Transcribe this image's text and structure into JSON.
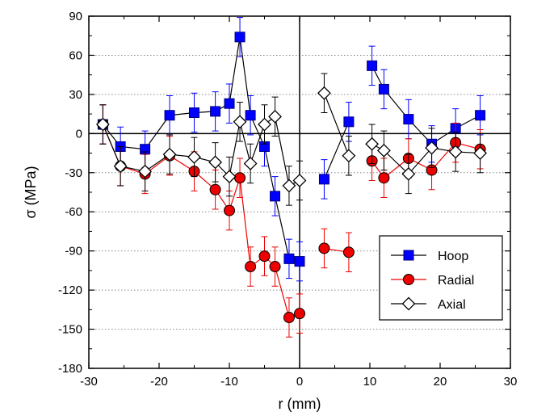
{
  "chart_data": {
    "type": "scatter",
    "xlabel": "r (mm)",
    "ylabel": "σ (MPa)",
    "xlim": [
      -30,
      30
    ],
    "ylim": [
      -180,
      90
    ],
    "x_ticks": [
      -30,
      -20,
      -10,
      0,
      10,
      20,
      30
    ],
    "y_ticks": [
      -180,
      -150,
      -120,
      -90,
      -60,
      -30,
      0,
      30,
      60,
      90
    ],
    "grid": "horizontal dotted",
    "legend_position": "bottom-right",
    "series": [
      {
        "name": "Hoop",
        "marker": "square",
        "color": "#0000ff",
        "line_color": "#000000",
        "segments": [
          [
            {
              "x": -28.0,
              "y": 7,
              "err": 15
            },
            {
              "x": -25.5,
              "y": -10,
              "err": 15
            },
            {
              "x": -22.0,
              "y": -12,
              "err": 14
            },
            {
              "x": -18.5,
              "y": 14,
              "err": 15
            },
            {
              "x": -15.0,
              "y": 16,
              "err": 15
            },
            {
              "x": -12.0,
              "y": 17,
              "err": 15
            },
            {
              "x": -10.0,
              "y": 23,
              "err": 15
            },
            {
              "x": -8.5,
              "y": 74,
              "err": 15
            },
            {
              "x": -7.0,
              "y": 14,
              "err": 15
            },
            {
              "x": -5.0,
              "y": -10,
              "err": 15
            },
            {
              "x": -3.5,
              "y": -48,
              "err": 15
            },
            {
              "x": -1.5,
              "y": -96,
              "err": 15
            },
            {
              "x": 0.0,
              "y": -98,
              "err": 15
            }
          ],
          [
            {
              "x": 3.5,
              "y": -35,
              "err": 15
            },
            {
              "x": 7.0,
              "y": 9,
              "err": 15
            }
          ],
          [
            {
              "x": 10.3,
              "y": 52,
              "err": 15
            },
            {
              "x": 12.0,
              "y": 34,
              "err": 15
            },
            {
              "x": 15.5,
              "y": 11,
              "err": 15
            },
            {
              "x": 18.8,
              "y": -8,
              "err": 14
            },
            {
              "x": 22.2,
              "y": 4,
              "err": 15
            },
            {
              "x": 25.7,
              "y": 14,
              "err": 15
            }
          ]
        ]
      },
      {
        "name": "Radial",
        "marker": "circle",
        "color": "#ee0000",
        "line_color": "#ee0000",
        "segments": [
          [
            {
              "x": -28.0,
              "y": 7,
              "err": 15
            },
            {
              "x": -25.5,
              "y": -25,
              "err": 15
            },
            {
              "x": -22.0,
              "y": -31,
              "err": 15
            },
            {
              "x": -18.5,
              "y": -17,
              "err": 15
            },
            {
              "x": -15.0,
              "y": -29,
              "err": 15
            },
            {
              "x": -12.0,
              "y": -43,
              "err": 15
            },
            {
              "x": -10.0,
              "y": -59,
              "err": 15
            },
            {
              "x": -8.5,
              "y": -34,
              "err": 15
            },
            {
              "x": -7.0,
              "y": -102,
              "err": 15
            },
            {
              "x": -5.0,
              "y": -94,
              "err": 15
            },
            {
              "x": -3.5,
              "y": -102,
              "err": 15
            },
            {
              "x": -1.5,
              "y": -141,
              "err": 15
            },
            {
              "x": 0.0,
              "y": -138,
              "err": 15
            }
          ],
          [
            {
              "x": 3.5,
              "y": -88,
              "err": 15
            },
            {
              "x": 7.0,
              "y": -91,
              "err": 15
            }
          ],
          [
            {
              "x": 10.3,
              "y": -21,
              "err": 15
            },
            {
              "x": 12.0,
              "y": -34,
              "err": 15
            },
            {
              "x": 15.5,
              "y": -19,
              "err": 15
            },
            {
              "x": 18.8,
              "y": -28,
              "err": 15
            },
            {
              "x": 22.2,
              "y": -7,
              "err": 15
            },
            {
              "x": 25.7,
              "y": -12,
              "err": 15
            }
          ]
        ]
      },
      {
        "name": "Axial",
        "marker": "diamond",
        "color": "#ffffff",
        "line_color": "#000000",
        "segments": [
          [
            {
              "x": -28.0,
              "y": 7,
              "err": 15
            },
            {
              "x": -25.5,
              "y": -25,
              "err": 15
            },
            {
              "x": -22.0,
              "y": -29,
              "err": 15
            },
            {
              "x": -18.5,
              "y": -16,
              "err": 15
            },
            {
              "x": -15.0,
              "y": -18,
              "err": 15
            },
            {
              "x": -12.0,
              "y": -22,
              "err": 15
            },
            {
              "x": -10.0,
              "y": -33,
              "err": 15
            },
            {
              "x": -8.5,
              "y": 9,
              "err": 15
            },
            {
              "x": -7.0,
              "y": -23,
              "err": 15
            },
            {
              "x": -5.0,
              "y": 7,
              "err": 15
            },
            {
              "x": -3.5,
              "y": 13,
              "err": 15
            },
            {
              "x": -1.5,
              "y": -40,
              "err": 15
            },
            {
              "x": 0.0,
              "y": -36,
              "err": 15
            }
          ],
          [
            {
              "x": 3.5,
              "y": 31,
              "err": 15
            },
            {
              "x": 7.0,
              "y": -17,
              "err": 15
            }
          ],
          [
            {
              "x": 10.3,
              "y": -8,
              "err": 15
            },
            {
              "x": 12.0,
              "y": -13,
              "err": 15
            },
            {
              "x": 15.5,
              "y": -31,
              "err": 15
            },
            {
              "x": 18.8,
              "y": -11,
              "err": 15
            },
            {
              "x": 22.2,
              "y": -14,
              "err": 15
            },
            {
              "x": 25.7,
              "y": -15,
              "err": 15
            }
          ]
        ]
      }
    ]
  }
}
